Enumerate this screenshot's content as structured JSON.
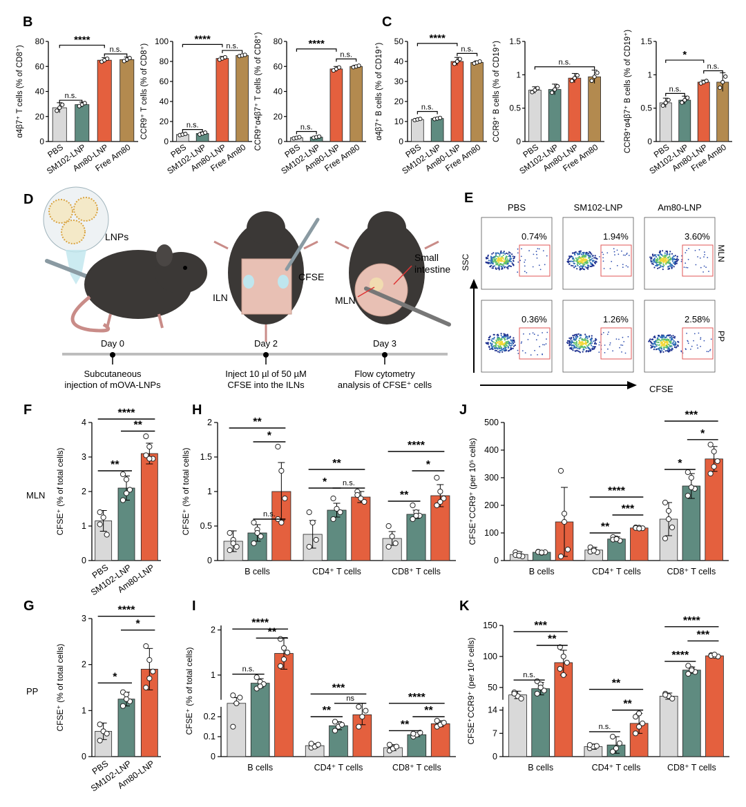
{
  "colors": {
    "grey": "#d9d9d9",
    "teal": "#5f8b80",
    "orange": "#e4603e",
    "gold": "#b38a4f",
    "axis": "#000000",
    "gate": "#e05555"
  },
  "charts_BC": [
    {
      "letter": "B",
      "ylabel": "α4β7⁺ T cells (% of CD8⁺)",
      "ylim": [
        0,
        80
      ],
      "ticks": [
        0,
        20,
        40,
        60,
        80
      ],
      "categories": [
        "PBS",
        "SM102-LNP",
        "Am80-LNP",
        "Free Am80"
      ],
      "values": [
        27,
        29.5,
        65,
        65.5
      ],
      "sd": [
        4,
        2,
        2,
        2
      ],
      "brackets": [
        {
          "from": 0,
          "to": 1,
          "label": "n.s.",
          "y": 33
        },
        {
          "from": 2,
          "to": 3,
          "label": "n.s.",
          "y": 70
        },
        {
          "from": 0,
          "to": 2,
          "label": "****",
          "y": 77
        }
      ]
    },
    {
      "letter": "",
      "ylabel": "CCR9⁺ T cells (% of CD8⁺)",
      "ylim": [
        0,
        100
      ],
      "ticks": [
        0,
        20,
        40,
        60,
        80,
        100
      ],
      "categories": [
        "PBS",
        "SM102-LNP",
        "Am80-LNP",
        "Free Am80"
      ],
      "values": [
        7,
        8,
        83,
        86
      ],
      "sd": [
        1,
        1.5,
        2,
        1
      ],
      "brackets": [
        {
          "from": 0,
          "to": 1,
          "label": "n.s.",
          "y": 12
        },
        {
          "from": 2,
          "to": 3,
          "label": "n.s.",
          "y": 91
        },
        {
          "from": 0,
          "to": 2,
          "label": "****",
          "y": 97
        }
      ]
    },
    {
      "letter": "",
      "ylabel": "CCR9⁺α4β7⁺ T cells (% of CD8⁺)",
      "ylim": [
        0,
        80
      ],
      "ticks": [
        0,
        20,
        40,
        60,
        80
      ],
      "categories": [
        "PBS",
        "SM102-LNP",
        "Am80-LNP",
        "Free Am80"
      ],
      "values": [
        3,
        3.5,
        58,
        60
      ],
      "sd": [
        0.8,
        0.8,
        2,
        1
      ],
      "brackets": [
        {
          "from": 0,
          "to": 1,
          "label": "n.s.",
          "y": 8
        },
        {
          "from": 2,
          "to": 3,
          "label": "n.s.",
          "y": 66
        },
        {
          "from": 0,
          "to": 2,
          "label": "****",
          "y": 74
        }
      ]
    },
    {
      "letter": "C",
      "ylabel": "α4β7⁺ B cells (% of CD19⁺)",
      "ylim": [
        0,
        50
      ],
      "ticks": [
        0,
        10,
        20,
        30,
        40,
        50
      ],
      "categories": [
        "PBS",
        "SM102-LNP",
        "Am80-LNP",
        "Free Am80"
      ],
      "values": [
        11,
        11.5,
        40,
        39.5
      ],
      "sd": [
        0.5,
        0.5,
        2,
        0.8
      ],
      "brackets": [
        {
          "from": 0,
          "to": 1,
          "label": "n.s.",
          "y": 15
        },
        {
          "from": 2,
          "to": 3,
          "label": "n.s.",
          "y": 44
        },
        {
          "from": 0,
          "to": 2,
          "label": "****",
          "y": 49
        }
      ]
    },
    {
      "letter": "",
      "ylabel": "CCR9⁺ B cells (% of CD19⁺)",
      "ylim": [
        0,
        1.5
      ],
      "ticks": [
        0.0,
        0.5,
        1.0,
        1.5
      ],
      "categories": [
        "PBS",
        "SM102-LNP",
        "Am80-LNP",
        "Free Am80"
      ],
      "values": [
        0.77,
        0.78,
        0.95,
        0.97
      ],
      "sd": [
        0.05,
        0.08,
        0.07,
        0.1
      ],
      "brackets": [
        {
          "from": 0,
          "to": 3,
          "label": "n.s.",
          "y": 1.12
        }
      ]
    },
    {
      "letter": "",
      "ylabel": "CCR9⁺α4β7⁺ B cells (% of CD19⁺)",
      "ylim": [
        0,
        1.5
      ],
      "ticks": [
        0.0,
        0.5,
        1.0,
        1.5
      ],
      "categories": [
        "PBS",
        "SM102-LNP",
        "Am80-LNP",
        "Free Am80"
      ],
      "values": [
        0.58,
        0.62,
        0.89,
        0.89
      ],
      "sd": [
        0.07,
        0.06,
        0.03,
        0.14
      ],
      "brackets": [
        {
          "from": 0,
          "to": 1,
          "label": "n.s.",
          "y": 0.72
        },
        {
          "from": 2,
          "to": 3,
          "label": "n.s.",
          "y": 1.06
        },
        {
          "from": 0,
          "to": 2,
          "label": "*",
          "y": 1.22
        }
      ]
    }
  ],
  "panelD": {
    "letter": "D",
    "lnps": "LNPs",
    "iln": "ILN",
    "cfse": "CFSE",
    "mln": "MLN",
    "small_intestine": "Small intestine",
    "timeline": [
      {
        "day": "Day 0",
        "desc1": "Subcutaneous",
        "desc2": "injection of mOVA-LNPs"
      },
      {
        "day": "Day 2",
        "desc1": "Inject 10 µl of 50 µM",
        "desc2": "CFSE into the ILNs"
      },
      {
        "day": "Day 3",
        "desc1": "Flow cytometry",
        "desc2": "analysis of CFSE⁺ cells"
      }
    ]
  },
  "panelE": {
    "letter": "E",
    "columns": [
      "PBS",
      "SM102-LNP",
      "Am80-LNP"
    ],
    "rows": [
      "MLN",
      "PP"
    ],
    "percents": [
      [
        "0.74%",
        "1.94%",
        "3.60%"
      ],
      [
        "0.36%",
        "1.26%",
        "2.58%"
      ]
    ],
    "xlabel": "CFSE",
    "ylabel": "SSC"
  },
  "chart_data": [
    {
      "letter": "F",
      "type": "bar",
      "row_label": "MLN",
      "ylabel": "CFSE⁺ (% of total cells)",
      "ylim": [
        0,
        4
      ],
      "ticks": [
        0,
        1,
        2,
        3,
        4
      ],
      "categories": [
        "PBS",
        "SM102-LNP",
        "Am80-LNP"
      ],
      "values": [
        1.15,
        2.1,
        3.1
      ],
      "sd": [
        0.3,
        0.35,
        0.3
      ],
      "points": [
        [
          1.4,
          1.25,
          0.75,
          1.05
        ],
        [
          2.5,
          2.35,
          2.05,
          1.75,
          1.95
        ],
        [
          3.6,
          3.3,
          2.95,
          3.05,
          2.95
        ]
      ],
      "brackets": [
        {
          "from": 0,
          "to": 1,
          "label": "**",
          "y": 2.6
        },
        {
          "from": 1,
          "to": 2,
          "label": "**",
          "y": 3.75
        },
        {
          "from": 0,
          "to": 2,
          "label": "****",
          "y": 4.1
        }
      ]
    },
    {
      "letter": "G",
      "type": "bar",
      "row_label": "PP",
      "ylabel": "CFSE⁺ (% of total cells)",
      "ylim": [
        0,
        3
      ],
      "ticks": [
        0,
        1,
        2,
        3
      ],
      "categories": [
        "PBS",
        "SM102-LNP",
        "Am80-LNP"
      ],
      "values": [
        0.55,
        1.25,
        1.9
      ],
      "sd": [
        0.18,
        0.15,
        0.45
      ],
      "points": [
        [
          0.7,
          0.55,
          0.5,
          0.35
        ],
        [
          1.4,
          1.35,
          1.2,
          1.1,
          1.25
        ],
        [
          2.4,
          2.1,
          1.85,
          1.5,
          1.7
        ]
      ],
      "brackets": [
        {
          "from": 0,
          "to": 1,
          "label": "*",
          "y": 1.6
        },
        {
          "from": 1,
          "to": 2,
          "label": "*",
          "y": 2.75
        },
        {
          "from": 0,
          "to": 2,
          "label": "****",
          "y": 3.05
        }
      ]
    },
    {
      "letter": "H",
      "type": "grouped-bar",
      "ylabel": "CFSE⁺ (% of total cells)",
      "ylim": [
        0,
        2.0
      ],
      "ticks": [
        0.0,
        0.5,
        1.0,
        1.5,
        2.0
      ],
      "categories": [
        "B cells",
        "CD4⁺ T cells",
        "CD8⁺ T cells"
      ],
      "values": [
        [
          0.28,
          0.4,
          1.0
        ],
        [
          0.38,
          0.73,
          0.92
        ],
        [
          0.32,
          0.67,
          0.94
        ]
      ],
      "sd": [
        [
          0.15,
          0.12,
          0.42
        ],
        [
          0.2,
          0.1,
          0.08
        ],
        [
          0.1,
          0.06,
          0.16
        ]
      ],
      "points": [
        [
          [
            0.4,
            0.3,
            0.2,
            0.15,
            0.25
          ],
          [
            0.55,
            0.45,
            0.35,
            0.25,
            0.4
          ],
          [
            1.65,
            1.3,
            0.9,
            0.6,
            0.55
          ]
        ],
        [
          [
            0.7,
            0.55,
            0.3,
            0.2
          ],
          [
            0.9,
            0.75,
            0.7,
            0.6
          ],
          [
            1.0,
            0.9,
            0.85,
            0.95
          ]
        ],
        [
          [
            0.5,
            0.35,
            0.25,
            0.2
          ],
          [
            0.8,
            0.7,
            0.65,
            0.6,
            0.65
          ],
          [
            1.2,
            1.0,
            0.9,
            0.8,
            0.85
          ]
        ]
      ],
      "brackets": [
        [
          {
            "a": 1,
            "b": 2,
            "label": "n.s.",
            "y": 0.6
          },
          {
            "a": 1,
            "b": 2,
            "label": "*",
            "y": 1.72
          },
          {
            "a": 0,
            "b": 2,
            "label": "**",
            "y": 1.92
          }
        ],
        [
          {
            "a": 0,
            "b": 1,
            "label": "*",
            "y": 1.05
          },
          {
            "a": 1,
            "b": 2,
            "label": "n.s.",
            "y": 1.05
          },
          {
            "a": 0,
            "b": 2,
            "label": "**",
            "y": 1.32
          }
        ],
        [
          {
            "a": 0,
            "b": 1,
            "label": "**",
            "y": 0.86
          },
          {
            "a": 1,
            "b": 2,
            "label": "*",
            "y": 1.3
          },
          {
            "a": 0,
            "b": 2,
            "label": "****",
            "y": 1.58
          }
        ]
      ]
    },
    {
      "letter": "I",
      "type": "grouped-bar",
      "ylabel": "CFSE⁺ (% of total cells)",
      "broken": true,
      "lower": [
        0,
        0.25
      ],
      "upper": [
        0.45,
        2.1
      ],
      "lower_ticks": [
        0.0,
        0.1,
        0.2
      ],
      "upper_ticks": [
        1,
        2
      ],
      "categories": [
        "B cells",
        "CD4⁺ T cells",
        "CD8⁺ T cells"
      ],
      "values": [
        [
          0.4,
          0.82,
          1.48
        ],
        [
          0.055,
          0.155,
          0.21
        ],
        [
          0.045,
          0.11,
          0.165
        ]
      ],
      "sd": [
        [
          0.1,
          0.1,
          0.35
        ],
        [
          0.01,
          0.02,
          0.05
        ],
        [
          0.015,
          0.01,
          0.015
        ]
      ],
      "points": [
        [
          [
            0.15,
            0.28,
            0.5,
            0.55
          ],
          [
            0.7,
            0.85,
            0.8,
            0.95,
            0.75
          ],
          [
            1.2,
            1.35,
            1.5,
            1.8,
            1.6
          ]
        ],
        [
          [
            0.045,
            0.05,
            0.06,
            0.065
          ],
          [
            0.13,
            0.15,
            0.16,
            0.175
          ],
          [
            0.15,
            0.2,
            0.23,
            0.25
          ]
        ],
        [
          [
            0.03,
            0.04,
            0.05,
            0.06
          ],
          [
            0.1,
            0.11,
            0.12,
            0.115
          ],
          [
            0.15,
            0.16,
            0.17,
            0.18
          ]
        ]
      ],
      "brackets": [
        [
          {
            "a": 0,
            "b": 1,
            "label": "n.s.",
            "y": 1.02
          },
          {
            "a": 1,
            "b": 2,
            "label": "**",
            "y": 1.82
          },
          {
            "a": 0,
            "b": 2,
            "label": "****",
            "y": 2.02
          }
        ],
        [
          {
            "a": 0,
            "b": 1,
            "label": "**",
            "y": 0.2
          },
          {
            "a": 1,
            "b": 2,
            "label": "ns",
            "y": 0.26
          },
          {
            "a": 0,
            "b": 2,
            "label": "***",
            "y": 0.58
          }
        ],
        [
          {
            "a": 0,
            "b": 1,
            "label": "**",
            "y": 0.13
          },
          {
            "a": 1,
            "b": 2,
            "label": "**",
            "y": 0.2
          },
          {
            "a": 0,
            "b": 2,
            "label": "****",
            "y": 0.27
          }
        ]
      ]
    },
    {
      "letter": "J",
      "type": "grouped-bar",
      "ylabel": "CFSE⁺CCR9⁺ (per 10⁵ cells)",
      "ylim": [
        0,
        500
      ],
      "ticks": [
        0,
        100,
        200,
        300,
        400,
        500
      ],
      "categories": [
        "B cells",
        "CD4⁺ T cells",
        "CD8⁺ T cells"
      ],
      "values": [
        [
          22,
          30,
          140
        ],
        [
          38,
          78,
          118
        ],
        [
          150,
          270,
          368
        ]
      ],
      "sd": [
        [
          10,
          5,
          125
        ],
        [
          10,
          8,
          3
        ],
        [
          60,
          45,
          45
        ]
      ],
      "points": [
        [
          [
            30,
            25,
            15,
            20,
            18
          ],
          [
            32,
            28,
            30,
            31,
            29
          ],
          [
            325,
            170,
            40,
            15,
            140
          ]
        ],
        [
          [
            48,
            40,
            30,
            32,
            36
          ],
          [
            85,
            80,
            72,
            76,
            78
          ],
          [
            120,
            119,
            117,
            118,
            116
          ]
        ],
        [
          [
            210,
            180,
            120,
            80,
            150
          ],
          [
            320,
            300,
            260,
            235,
            265
          ],
          [
            420,
            395,
            360,
            315,
            340
          ]
        ]
      ],
      "brackets": [
        [],
        [
          {
            "a": 0,
            "b": 1,
            "label": "**",
            "y": 100
          },
          {
            "a": 1,
            "b": 2,
            "label": "***",
            "y": 165
          },
          {
            "a": 0,
            "b": 2,
            "label": "****",
            "y": 230
          }
        ],
        [
          {
            "a": 0,
            "b": 1,
            "label": "*",
            "y": 330
          },
          {
            "a": 1,
            "b": 2,
            "label": "*",
            "y": 438
          },
          {
            "a": 0,
            "b": 2,
            "label": "***",
            "y": 505
          }
        ]
      ]
    },
    {
      "letter": "K",
      "type": "grouped-bar",
      "ylabel": "CFSE⁺CCR9⁺ (per 10⁵ cells)",
      "broken": true,
      "lower": [
        0,
        15
      ],
      "upper": [
        30,
        150
      ],
      "lower_ticks": [
        0,
        7,
        14
      ],
      "upper_ticks": [
        50,
        100,
        150
      ],
      "categories": [
        "B cells",
        "CD4⁺ T cells",
        "CD8⁺ T cells"
      ],
      "values": [
        [
          38,
          48,
          90
        ],
        [
          3,
          3.5,
          10
        ],
        [
          36,
          78,
          101
        ]
      ],
      "sd": [
        [
          6,
          10,
          20
        ],
        [
          0.8,
          2.5,
          3
        ],
        [
          5,
          5,
          2
        ]
      ],
      "points": [
        [
          [
            42,
            36,
            32,
            40
          ],
          [
            60,
            55,
            45,
            40,
            50
          ],
          [
            115,
            100,
            90,
            80,
            70
          ]
        ],
        [
          [
            2.5,
            3,
            3.2,
            3.5
          ],
          [
            1.5,
            2.5,
            4,
            6
          ],
          [
            7,
            9,
            10,
            12,
            13
          ]
        ],
        [
          [
            40,
            36,
            32,
            38
          ],
          [
            85,
            80,
            75,
            72,
            78
          ],
          [
            102,
            101,
            100,
            101,
            103
          ]
        ]
      ],
      "brackets": [
        [
          {
            "a": 0,
            "b": 1,
            "label": "n.s.",
            "y": 62
          },
          {
            "a": 1,
            "b": 2,
            "label": "**",
            "y": 118
          },
          {
            "a": 0,
            "b": 2,
            "label": "***",
            "y": 140
          }
        ],
        [
          {
            "a": 0,
            "b": 1,
            "label": "n.s.",
            "y": 7.5
          },
          {
            "a": 1,
            "b": 2,
            "label": "**",
            "y": 14
          },
          {
            "a": 0,
            "b": 2,
            "label": "**",
            "y": 47
          }
        ],
        [
          {
            "a": 0,
            "b": 1,
            "label": "****",
            "y": 92
          },
          {
            "a": 1,
            "b": 2,
            "label": "***",
            "y": 125
          },
          {
            "a": 0,
            "b": 2,
            "label": "****",
            "y": 148
          }
        ]
      ]
    }
  ]
}
